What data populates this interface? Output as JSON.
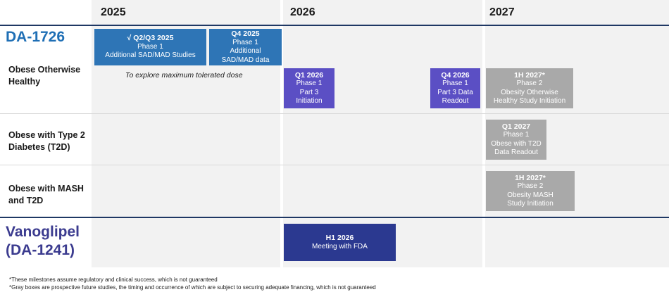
{
  "years": [
    "2025",
    "2026",
    "2027"
  ],
  "programs": [
    {
      "name": "DA-1726",
      "color": "#1f6fb5"
    },
    {
      "name": "Vanoglipel\n(DA-1241)",
      "color": "#3b3b8f"
    }
  ],
  "rows": [
    {
      "label": "Obese Otherwise\nHealthy"
    },
    {
      "label": "Obese with Type 2\nDiabetes (T2D)"
    },
    {
      "label": "Obese with MASH\nand T2D"
    }
  ],
  "milestones": [
    {
      "title": "√ Q2/Q3 2025",
      "lines": [
        "Phase 1",
        "Additional SAD/MAD Studies"
      ],
      "color": "#2e75b6"
    },
    {
      "title": "Q4 2025",
      "lines": [
        "Phase 1",
        "Additional",
        "SAD/MAD data"
      ],
      "color": "#2e75b6"
    },
    {
      "title": "Q1 2026",
      "lines": [
        "Phase 1",
        "Part 3",
        "Initiation"
      ],
      "color": "#5b4fc4"
    },
    {
      "title": "Q4 2026",
      "lines": [
        "Phase 1",
        "Part 3 Data",
        "Readout"
      ],
      "color": "#5b4fc4"
    },
    {
      "title": "1H 2027*",
      "lines": [
        "Phase 2",
        "Obesity Otherwise",
        "Healthy Study Initiation"
      ],
      "color": "#a9a9a9"
    },
    {
      "title": "Q1 2027",
      "lines": [
        "Phase 1",
        "Obese with T2D",
        "Data Readout"
      ],
      "color": "#a9a9a9"
    },
    {
      "title": "1H 2027*",
      "lines": [
        "Phase 2",
        "Obesity MASH",
        "Study Initiation"
      ],
      "color": "#a9a9a9"
    },
    {
      "title": "H1 2026",
      "lines": [
        "Meeting with FDA"
      ],
      "color": "#2b3990"
    }
  ],
  "note": "To explore maximum tolerated dose",
  "footnotes": [
    "*These milestones assume regulatory and clinical success, which is not guaranteed",
    "*Gray boxes are prospective future studies, the timing and occurrence of which are subject to securing adequate financing, which is not guaranteed"
  ]
}
